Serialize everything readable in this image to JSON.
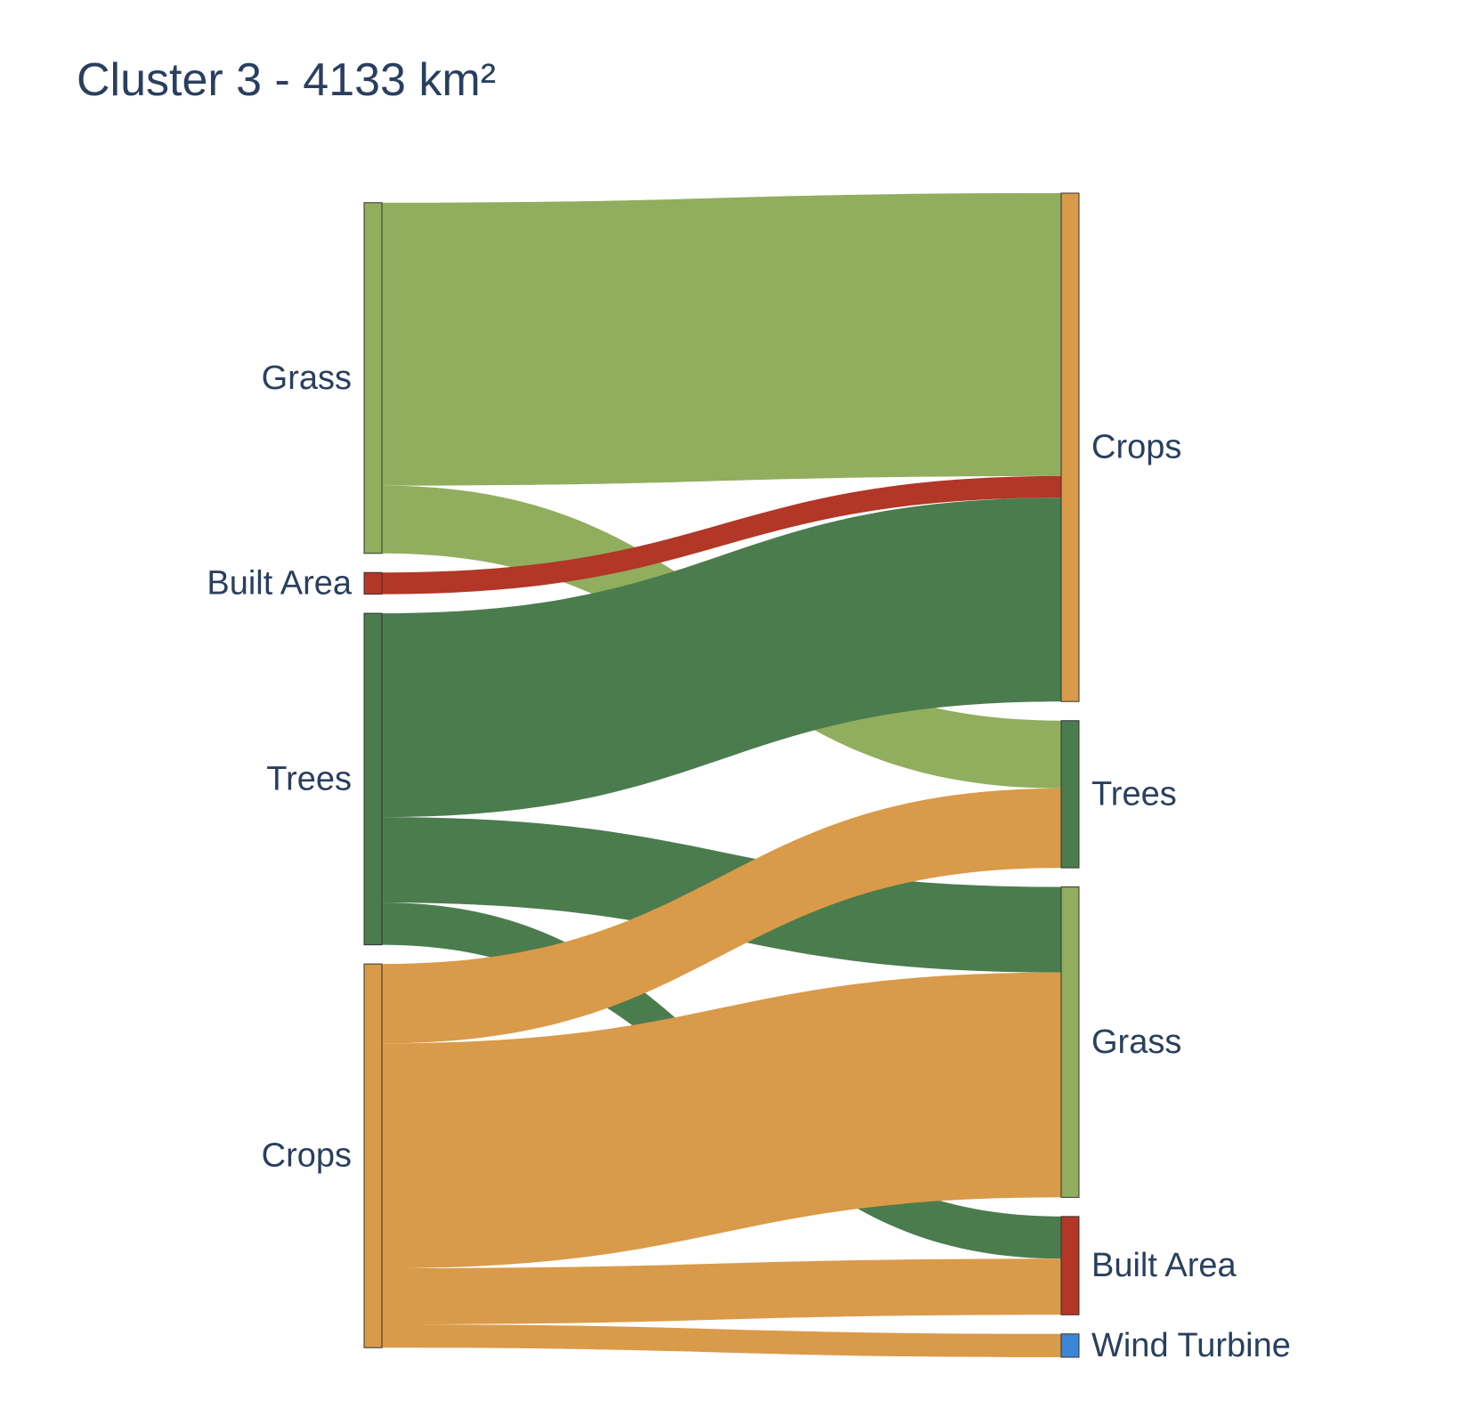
{
  "title": "Cluster 3 - 4133 km²",
  "colors": {
    "Grass": "#90ae5e",
    "Built Area": "#b23727",
    "Trees": "#4b7c4e",
    "Crops": "#d99a4a",
    "Wind Turbine": "#3d85d6",
    "text": "#2a3f5f",
    "node_outline": "#333333"
  },
  "chart_data": {
    "type": "sankey",
    "title": "Cluster 3 - 4133 km²",
    "source_nodes": [
      "Grass",
      "Built Area",
      "Trees",
      "Crops"
    ],
    "target_nodes": [
      "Crops",
      "Trees",
      "Grass",
      "Built Area",
      "Wind Turbine"
    ],
    "links": [
      {
        "source": "Grass",
        "target": "Crops",
        "value": 1019
      },
      {
        "source": "Grass",
        "target": "Trees",
        "value": 244
      },
      {
        "source": "Built Area",
        "target": "Crops",
        "value": 78
      },
      {
        "source": "Trees",
        "target": "Crops",
        "value": 734
      },
      {
        "source": "Trees",
        "target": "Grass",
        "value": 308
      },
      {
        "source": "Trees",
        "target": "Built Area",
        "value": 152
      },
      {
        "source": "Crops",
        "target": "Trees",
        "value": 286
      },
      {
        "source": "Crops",
        "target": "Grass",
        "value": 810
      },
      {
        "source": "Crops",
        "target": "Built Area",
        "value": 202
      },
      {
        "source": "Crops",
        "target": "Wind Turbine",
        "value": 84
      }
    ]
  }
}
